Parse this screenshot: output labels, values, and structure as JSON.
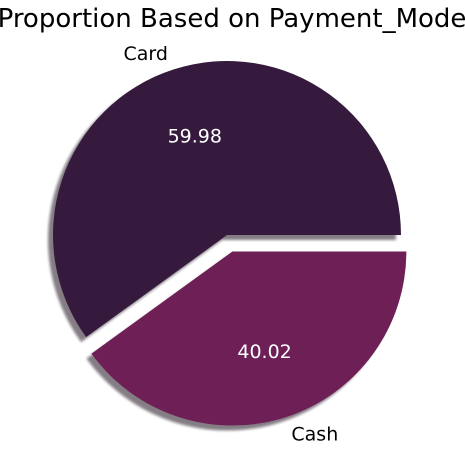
{
  "chart_data": {
    "type": "pie",
    "title": "Proportion Based on Payment_Mode",
    "categories": [
      "Card",
      "Cash"
    ],
    "values": [
      59.98,
      40.02
    ],
    "value_labels": [
      "59.98",
      "40.02"
    ],
    "colors": [
      "#361a3e",
      "#6e1f56"
    ],
    "exploded": [
      false,
      true
    ],
    "shadow": true,
    "start_angle_deg": 0,
    "direction": "counterclockwise"
  }
}
